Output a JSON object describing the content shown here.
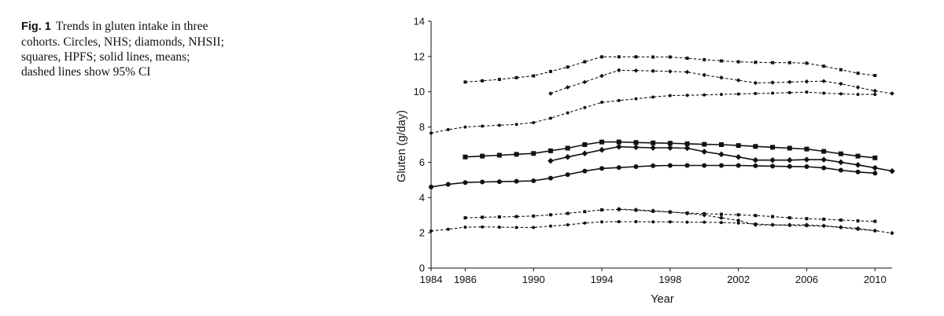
{
  "caption": {
    "label": "Fig. 1",
    "text": "Trends in gluten intake in three cohorts. Circles, NHS; diamonds, NHSII; squares, HPFS; solid lines, means; dashed lines show 95% CI"
  },
  "chart_data": {
    "type": "line",
    "title": "",
    "xlabel": "Year",
    "ylabel": "Gluten (g/day)",
    "xlim": [
      1984,
      2011
    ],
    "ylim": [
      0,
      14
    ],
    "x_ticks": [
      "1984",
      "1986",
      "1990",
      "1994",
      "1998",
      "2002",
      "2006",
      "2010"
    ],
    "y_ticks": [
      "0",
      "2",
      "4",
      "6",
      "8",
      "10",
      "12",
      "14"
    ],
    "grid": false,
    "legend": "none",
    "color": "#111111",
    "series": [
      {
        "cohort": "NHS",
        "marker": "circle",
        "line": "solid",
        "x": [
          1984,
          1985,
          1986,
          1987,
          1988,
          1989,
          1990,
          1991,
          1992,
          1993,
          1994,
          1995,
          1996,
          1997,
          1998,
          1999,
          2000,
          2001,
          2002,
          2003,
          2004,
          2005,
          2006,
          2007,
          2008,
          2009,
          2010
        ],
        "y": [
          4.6,
          4.75,
          4.85,
          4.88,
          4.9,
          4.92,
          4.95,
          5.1,
          5.3,
          5.5,
          5.65,
          5.7,
          5.75,
          5.8,
          5.82,
          5.82,
          5.82,
          5.82,
          5.82,
          5.8,
          5.78,
          5.76,
          5.75,
          5.68,
          5.55,
          5.45,
          5.38
        ]
      },
      {
        "cohort": "NHS",
        "marker": "circle",
        "line": "dashed",
        "bound": "upper",
        "x": [
          1984,
          1985,
          1986,
          1987,
          1988,
          1989,
          1990,
          1991,
          1992,
          1993,
          1994,
          1995,
          1996,
          1997,
          1998,
          1999,
          2000,
          2001,
          2002,
          2003,
          2004,
          2005,
          2006,
          2007,
          2008,
          2009,
          2010
        ],
        "y": [
          7.65,
          7.85,
          8.0,
          8.05,
          8.1,
          8.15,
          8.25,
          8.5,
          8.8,
          9.1,
          9.4,
          9.5,
          9.6,
          9.7,
          9.78,
          9.8,
          9.82,
          9.85,
          9.87,
          9.9,
          9.92,
          9.95,
          9.98,
          9.92,
          9.88,
          9.85,
          9.85
        ]
      },
      {
        "cohort": "NHS",
        "marker": "circle",
        "line": "dashed",
        "bound": "lower",
        "x": [
          1984,
          1985,
          1986,
          1987,
          1988,
          1989,
          1990,
          1991,
          1992,
          1993,
          1994,
          1995,
          1996,
          1997,
          1998,
          1999,
          2000,
          2001,
          2002,
          2003,
          2004,
          2005,
          2006,
          2007,
          2008,
          2009,
          2010
        ],
        "y": [
          2.1,
          2.2,
          2.32,
          2.33,
          2.32,
          2.3,
          2.3,
          2.38,
          2.45,
          2.55,
          2.62,
          2.63,
          2.63,
          2.62,
          2.62,
          2.6,
          2.6,
          2.58,
          2.55,
          2.5,
          2.45,
          2.42,
          2.4,
          2.38,
          2.3,
          2.2,
          2.12
        ]
      },
      {
        "cohort": "NHSII",
        "marker": "diamond",
        "line": "solid",
        "x": [
          1991,
          1992,
          1993,
          1994,
          1995,
          1996,
          1997,
          1998,
          1999,
          2000,
          2001,
          2002,
          2003,
          2004,
          2005,
          2006,
          2007,
          2008,
          2009,
          2010,
          2011
        ],
        "y": [
          6.08,
          6.3,
          6.5,
          6.7,
          6.88,
          6.85,
          6.82,
          6.82,
          6.8,
          6.6,
          6.45,
          6.3,
          6.12,
          6.12,
          6.12,
          6.15,
          6.15,
          6.0,
          5.85,
          5.68,
          5.5
        ]
      },
      {
        "cohort": "NHSII",
        "marker": "diamond",
        "line": "dashed",
        "bound": "upper",
        "x": [
          1991,
          1992,
          1993,
          1994,
          1995,
          1996,
          1997,
          1998,
          1999,
          2000,
          2001,
          2002,
          2003,
          2004,
          2005,
          2006,
          2007,
          2008,
          2009,
          2010,
          2011
        ],
        "y": [
          9.9,
          10.25,
          10.55,
          10.9,
          11.22,
          11.2,
          11.18,
          11.15,
          11.12,
          10.95,
          10.8,
          10.65,
          10.5,
          10.52,
          10.55,
          10.58,
          10.6,
          10.45,
          10.25,
          10.05,
          9.9
        ]
      },
      {
        "cohort": "NHSII",
        "marker": "diamond",
        "line": "dashed",
        "bound": "lower",
        "x": [
          1995,
          1996,
          1997,
          1998,
          1999,
          2000,
          2001,
          2002,
          2003,
          2004,
          2005,
          2006,
          2007,
          2008,
          2009,
          2010,
          2011
        ],
        "y": [
          3.35,
          3.3,
          3.25,
          3.18,
          3.1,
          3.0,
          2.85,
          2.7,
          2.45,
          2.45,
          2.45,
          2.45,
          2.4,
          2.32,
          2.25,
          2.12,
          1.98
        ]
      },
      {
        "cohort": "HPFS",
        "marker": "square",
        "line": "solid",
        "x": [
          1986,
          1987,
          1988,
          1989,
          1990,
          1991,
          1992,
          1993,
          1994,
          1995,
          1996,
          1997,
          1998,
          1999,
          2000,
          2001,
          2002,
          2003,
          2004,
          2005,
          2006,
          2007,
          2008,
          2009,
          2010
        ],
        "y": [
          6.3,
          6.35,
          6.4,
          6.45,
          6.5,
          6.65,
          6.8,
          7.0,
          7.15,
          7.15,
          7.12,
          7.1,
          7.08,
          7.05,
          7.02,
          7.0,
          6.95,
          6.9,
          6.85,
          6.8,
          6.75,
          6.62,
          6.48,
          6.35,
          6.25
        ]
      },
      {
        "cohort": "HPFS",
        "marker": "square",
        "line": "dashed",
        "bound": "upper",
        "x": [
          1986,
          1987,
          1988,
          1989,
          1990,
          1991,
          1992,
          1993,
          1994,
          1995,
          1996,
          1997,
          1998,
          1999,
          2000,
          2001,
          2002,
          2003,
          2004,
          2005,
          2006,
          2007,
          2008,
          2009,
          2010
        ],
        "y": [
          10.55,
          10.62,
          10.7,
          10.8,
          10.9,
          11.15,
          11.4,
          11.7,
          11.98,
          11.98,
          11.98,
          11.97,
          11.97,
          11.9,
          11.82,
          11.75,
          11.7,
          11.67,
          11.65,
          11.65,
          11.62,
          11.45,
          11.25,
          11.05,
          10.92
        ]
      },
      {
        "cohort": "HPFS",
        "marker": "square",
        "line": "dashed",
        "bound": "lower",
        "x": [
          1986,
          1987,
          1988,
          1989,
          1990,
          1991,
          1992,
          1993,
          1994,
          1995,
          1996,
          1997,
          1998,
          1999,
          2000,
          2001,
          2002,
          2003,
          2004,
          2005,
          2006,
          2007,
          2008,
          2009,
          2010
        ],
        "y": [
          2.85,
          2.88,
          2.9,
          2.92,
          2.95,
          3.02,
          3.1,
          3.2,
          3.3,
          3.32,
          3.28,
          3.22,
          3.18,
          3.12,
          3.08,
          3.05,
          3.02,
          2.98,
          2.92,
          2.85,
          2.8,
          2.77,
          2.72,
          2.68,
          2.65
        ]
      }
    ]
  }
}
